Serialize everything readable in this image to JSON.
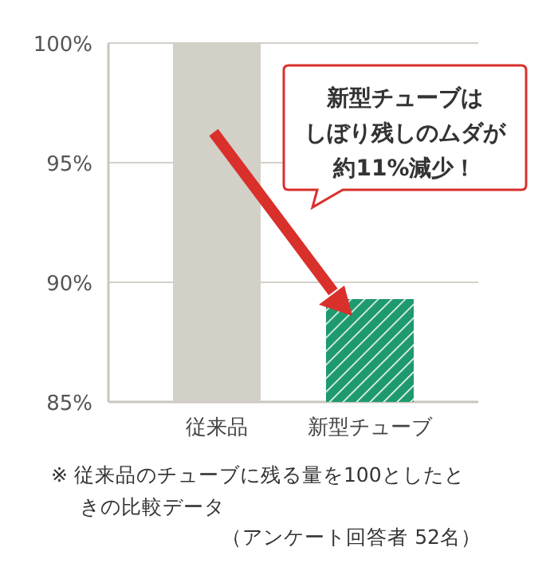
{
  "chart_data": {
    "type": "bar",
    "categories": [
      "従来品",
      "新型チューブ"
    ],
    "values": [
      100,
      89.3
    ],
    "colors": [
      "#d3d0c8",
      "#1f9a6f"
    ],
    "ylim": [
      85,
      100
    ],
    "yticks": [
      {
        "value": 85,
        "label": "85%"
      },
      {
        "value": 90,
        "label": "90%"
      },
      {
        "value": 95,
        "label": "95%"
      },
      {
        "value": 100,
        "label": "100%"
      }
    ],
    "grid": "y",
    "annotations": [
      "新型チューブは",
      "しぼり残しのムダが",
      "約11%減少！",
      "※ 従来品のチューブに残る量を100としたときの比較データ",
      "（アンケート回答者 52名）"
    ]
  }
}
